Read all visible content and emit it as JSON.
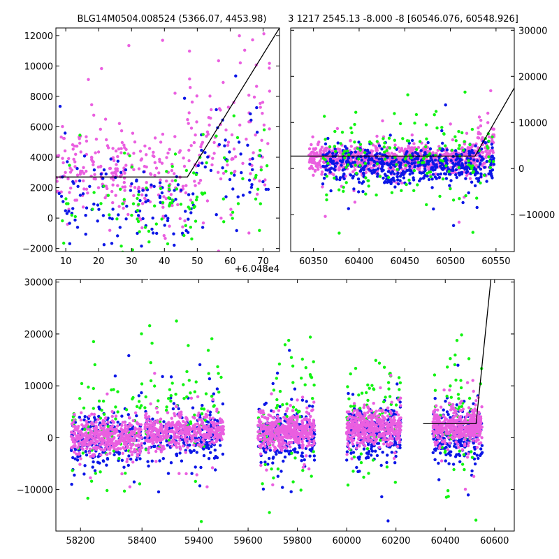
{
  "titles": {
    "left": "BLG14M0504.008524 (5366.07, 4453.98)",
    "right": "3 1217 2545.13 -8.000 -8 [60546.076, 60548.926]"
  },
  "colors": {
    "blue": "#0b16e6",
    "green": "#12f312",
    "magenta": "#ea5fe0",
    "model": "#000000"
  },
  "chart_data": [
    {
      "panel": "top-left zoom",
      "type": "scatter",
      "x_offset_label": "+6.048e4",
      "xlim": [
        7,
        75
      ],
      "ylim": [
        -2200,
        12500
      ],
      "x_ticks": [
        "10",
        "20",
        "30",
        "40",
        "50",
        "60",
        "70"
      ],
      "y_ticks": [
        "−2000",
        "0",
        "2000",
        "4000",
        "6000",
        "8000",
        "10000",
        "12000"
      ],
      "x_tick_values": [
        10,
        20,
        30,
        40,
        50,
        60,
        70
      ],
      "y_tick_values": [
        -2000,
        0,
        2000,
        4000,
        6000,
        8000,
        10000,
        12000
      ],
      "model_line": {
        "x": [
          7,
          47,
          75
        ],
        "y": [
          2700,
          2700,
          12500
        ]
      },
      "series": [
        {
          "color": "magenta",
          "clusters": [
            {
              "x": [
                7,
                33
              ],
              "y_mean": 3200,
              "y_sd": 1400,
              "n": 170
            },
            {
              "x": [
                33,
                47
              ],
              "y_mean": 2500,
              "y_sd": 1500,
              "n": 80
            },
            {
              "x": [
                47,
                62
              ],
              "y_mean": 4500,
              "y_sd": 2000,
              "n": 70
            },
            {
              "x": [
                62,
                72
              ],
              "y_mean": 6500,
              "y_sd": 3200,
              "n": 40
            }
          ]
        },
        {
          "color": "blue",
          "clusters": [
            {
              "x": [
                7,
                33
              ],
              "y_mean": 800,
              "y_sd": 1600,
              "n": 70
            },
            {
              "x": [
                33,
                50
              ],
              "y_mean": 700,
              "y_sd": 1400,
              "n": 50
            },
            {
              "x": [
                50,
                72
              ],
              "y_mean": 3200,
              "y_sd": 2200,
              "n": 50
            }
          ]
        },
        {
          "color": "green",
          "clusters": [
            {
              "x": [
                7,
                33
              ],
              "y_mean": 700,
              "y_sd": 1400,
              "n": 35
            },
            {
              "x": [
                33,
                50
              ],
              "y_mean": 900,
              "y_sd": 1300,
              "n": 40
            },
            {
              "x": [
                50,
                72
              ],
              "y_mean": 3500,
              "y_sd": 2500,
              "n": 30
            }
          ]
        }
      ]
    },
    {
      "panel": "top-right",
      "type": "scatter",
      "xlim": [
        60325,
        60570
      ],
      "ylim": [
        -18000,
        30500
      ],
      "x_ticks": [
        "60350",
        "60400",
        "60450",
        "60500",
        "60550"
      ],
      "y_ticks": [
        "−10000",
        "0",
        "10000",
        "20000",
        "30000"
      ],
      "x_tick_values": [
        60350,
        60400,
        60450,
        60500,
        60550
      ],
      "y_tick_values": [
        -10000,
        0,
        10000,
        20000,
        30000
      ],
      "model_line": {
        "x": [
          60325,
          60527,
          60570
        ],
        "y": [
          2700,
          2700,
          17500
        ]
      },
      "series": [
        {
          "color": "magenta",
          "clusters": [
            {
              "x": [
                60345,
                60530
              ],
              "y_mean": 2000,
              "y_sd": 1500,
              "n": 900
            },
            {
              "x": [
                60530,
                60548
              ],
              "y_mean": 4500,
              "y_sd": 3000,
              "n": 80
            }
          ]
        },
        {
          "color": "blue",
          "clusters": [
            {
              "x": [
                60360,
                60548
              ],
              "y_mean": 600,
              "y_sd": 2000,
              "n": 500
            }
          ]
        },
        {
          "color": "green",
          "clusters": [
            {
              "x": [
                60360,
                60548
              ],
              "y_mean": 3000,
              "y_sd": 4500,
              "n": 160
            }
          ]
        }
      ]
    },
    {
      "panel": "bottom full",
      "type": "scatter",
      "xlim": [
        58120,
        60680
      ],
      "ylim": [
        -18000,
        30500
      ],
      "x_ticks": [
        "58200",
        "58400",
        "59400",
        "59600",
        "59800",
        "60000",
        "60200",
        "60400",
        "60600"
      ],
      "y_ticks": [
        "−10000",
        "0",
        "10000",
        "20000",
        "30000"
      ],
      "y_tick_values": [
        -10000,
        0,
        10000,
        20000,
        30000
      ],
      "model_line": {
        "x": [
          60310,
          60525,
          60585
        ],
        "y": [
          2700,
          2700,
          30500
        ]
      },
      "seasons": [
        {
          "x": [
            58170,
            58400
          ],
          "mag_mean": 200,
          "blue_mean": -500,
          "green_mean": 3000
        },
        {
          "x": [
            59180,
            59500
          ],
          "mag_mean": 1200,
          "blue_mean": 400,
          "green_mean": 5500
        },
        {
          "x": [
            59640,
            59870
          ],
          "mag_mean": 1200,
          "blue_mean": 400,
          "green_mean": 3000
        },
        {
          "x": [
            60000,
            60220
          ],
          "mag_mean": 2000,
          "blue_mean": 800,
          "green_mean": 5000
        },
        {
          "x": [
            60350,
            60550
          ],
          "mag_mean": 2200,
          "blue_mean": 600,
          "green_mean": 4000
        }
      ]
    }
  ]
}
